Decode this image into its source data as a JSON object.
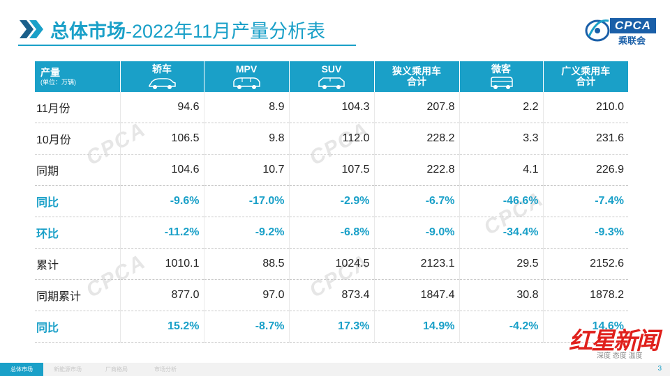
{
  "title": {
    "bold": "总体市场",
    "rest": "-2022年11月产量分析表"
  },
  "logo": {
    "en": "CPCA",
    "cn": "乘联会"
  },
  "table": {
    "header": {
      "first_line1": "产量",
      "first_line2": "(单位：万辆)",
      "cols": [
        {
          "l1": "轿车",
          "l2": "",
          "icon": "sedan-icon"
        },
        {
          "l1": "MPV",
          "l2": "",
          "icon": "mpv-icon"
        },
        {
          "l1": "SUV",
          "l2": "",
          "icon": "suv-icon"
        },
        {
          "l1": "狭义乘用车",
          "l2": "合计",
          "icon": ""
        },
        {
          "l1": "微客",
          "l2": "",
          "icon": "minivan-icon"
        },
        {
          "l1": "广义乘用车",
          "l2": "合计",
          "icon": ""
        }
      ]
    },
    "rows": [
      {
        "label": "11月份",
        "values": [
          "94.6",
          "8.9",
          "104.3",
          "207.8",
          "2.2",
          "210.0"
        ]
      },
      {
        "label": "10月份",
        "values": [
          "106.5",
          "9.8",
          "112.0",
          "228.2",
          "3.3",
          "231.6"
        ]
      },
      {
        "label": "同期",
        "values": [
          "104.6",
          "10.7",
          "107.5",
          "222.8",
          "4.1",
          "226.9"
        ]
      },
      {
        "label": "同比",
        "values": [
          "-9.6%",
          "-17.0%",
          "-2.9%",
          "-6.7%",
          "-46.6%",
          "-7.4%"
        ]
      },
      {
        "label": "环比",
        "values": [
          "-11.2%",
          "-9.2%",
          "-6.8%",
          "-9.0%",
          "-34.4%",
          "-9.3%"
        ]
      },
      {
        "label": "累计",
        "values": [
          "1010.1",
          "88.5",
          "1024.5",
          "2123.1",
          "29.5",
          "2152.6"
        ]
      },
      {
        "label": "同期累计",
        "values": [
          "877.0",
          "97.0",
          "873.4",
          "1847.4",
          "30.8",
          "1878.2"
        ]
      },
      {
        "label": "同比",
        "values": [
          "15.2%",
          "-8.7%",
          "17.3%",
          "14.9%",
          "-4.2%",
          "14.6%"
        ]
      }
    ]
  },
  "nav": {
    "items": [
      "总体市场",
      "新能源市场",
      "厂商格局",
      "市场分析"
    ]
  },
  "page_number": "3",
  "watermark": {
    "main": "红星新闻",
    "sub": "深度 态度 温度"
  }
}
